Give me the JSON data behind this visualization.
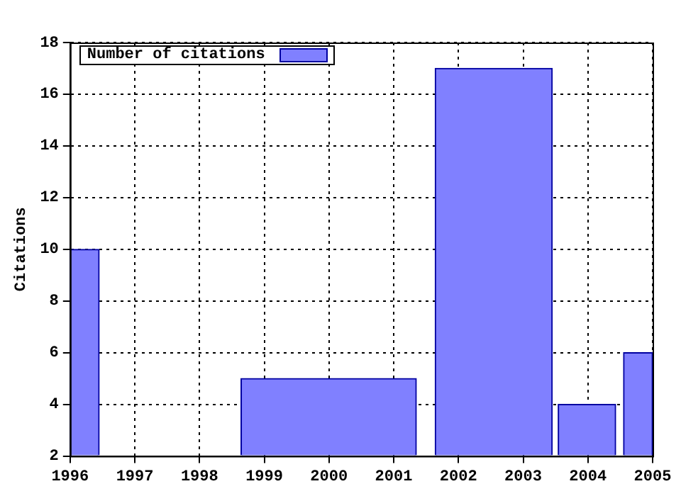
{
  "chart_data": {
    "type": "histogram",
    "ylabel": "Citations",
    "bins": [
      1996,
      1996.45,
      1998.64,
      2001.35,
      2001.64,
      2003.45,
      2003.54,
      2004.43,
      2004.55,
      2005
    ],
    "series": [
      {
        "name": "Number of citations",
        "color": "#8080ff",
        "values": [
          10,
          null,
          5,
          null,
          17,
          null,
          4,
          null,
          6
        ]
      }
    ],
    "xlim": [
      1996,
      2005
    ],
    "xticks": [
      1996,
      1997,
      1998,
      1999,
      2000,
      2001,
      2002,
      2003,
      2004,
      2005
    ],
    "ylim": [
      2,
      18
    ],
    "yticks": [
      2,
      4,
      6,
      8,
      10,
      12,
      14,
      16,
      18
    ],
    "grid": true,
    "legend": "top left"
  }
}
